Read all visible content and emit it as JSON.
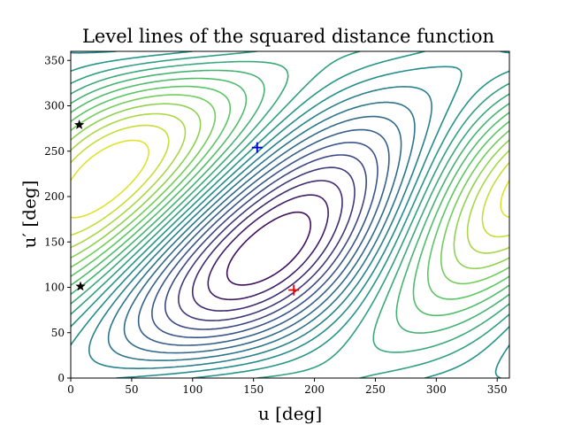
{
  "chart_data": {
    "type": "contour",
    "title": "Level lines of the squared distance function",
    "xlabel": "u [deg]",
    "ylabel": "u′ [deg]",
    "xlim": [
      0,
      360
    ],
    "ylim": [
      0,
      360
    ],
    "xticks": [
      "0",
      "50",
      "100",
      "150",
      "200",
      "250",
      "300",
      "350"
    ],
    "yticks": [
      "0",
      "50",
      "100",
      "150",
      "200",
      "250",
      "300",
      "350"
    ],
    "xtick_values": [
      0,
      50,
      100,
      150,
      200,
      250,
      300,
      350
    ],
    "ytick_values": [
      0,
      50,
      100,
      150,
      200,
      250,
      300,
      350
    ],
    "grid": false,
    "colormap": "viridis",
    "maximum_marker": {
      "x": 183,
      "y": 97,
      "color": "#ff0000",
      "symbol": "+"
    },
    "minimum_marker": {
      "x": 153,
      "y": 254,
      "color": "#0000cc",
      "symbol": "+"
    },
    "star_markers": [
      {
        "x": 7,
        "y": 279,
        "color": "#000000",
        "symbol": "star"
      },
      {
        "x": 8,
        "y": 101,
        "color": "#000000",
        "symbol": "star"
      }
    ]
  }
}
